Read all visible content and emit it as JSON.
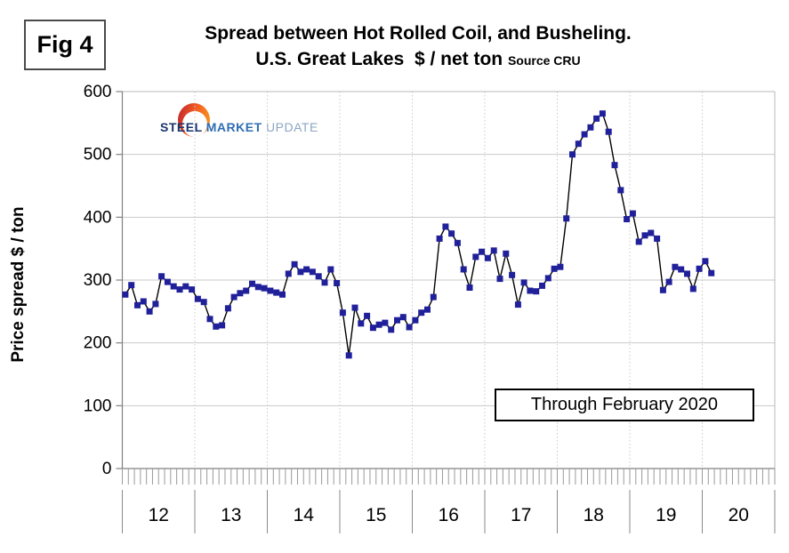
{
  "figure": {
    "label": "Fig 4"
  },
  "title": {
    "line1": "Spread between Hot Rolled Coil, and Busheling.",
    "line2": "U.S. Great Lakes  $ / net ton ",
    "source": "Source CRU"
  },
  "y_axis": {
    "title": "Price spread $ / ton",
    "ticks": [
      600,
      500,
      400,
      300,
      200,
      100,
      0
    ],
    "min": 0,
    "max": 600
  },
  "x_axis": {
    "year_labels": [
      "12",
      "13",
      "14",
      "15",
      "16",
      "17",
      "18",
      "19",
      "20"
    ],
    "months_per_year": 12
  },
  "annotation": {
    "text": "Through February 2020"
  },
  "logo": {
    "part1": "STEEL",
    "part2": " MARKET",
    "part3": " UPDATE"
  },
  "colors": {
    "series_marker": "#20209a",
    "series_line": "#000000",
    "grid": "#c9c9c9",
    "axis": "#808080",
    "border": "#b8b8b8",
    "logo_orange": "#f15a24",
    "logo_blue_dark": "#17356e",
    "logo_blue_mid": "#2e6db4",
    "logo_blue_light": "#8aa5c4"
  },
  "chart_data": {
    "type": "line",
    "title": "Spread between Hot Rolled Coil, and Busheling. U.S. Great Lakes $ / net ton",
    "source": "CRU",
    "ylabel": "Price spread $ / ton",
    "ylim": [
      0,
      600
    ],
    "y_gridline_step": 100,
    "x_start": "2012-01",
    "x_end": "2020-02",
    "x_unit": "month",
    "legend": "none",
    "marker": "square",
    "values": [
      277,
      292,
      260,
      266,
      250,
      262,
      306,
      297,
      290,
      285,
      290,
      285,
      270,
      265,
      238,
      226,
      228,
      255,
      273,
      279,
      283,
      294,
      289,
      287,
      283,
      280,
      277,
      310,
      325,
      313,
      317,
      313,
      306,
      296,
      317,
      295,
      248,
      180,
      256,
      231,
      243,
      224,
      229,
      232,
      221,
      236,
      241,
      225,
      236,
      248,
      253,
      273,
      366,
      385,
      374,
      359,
      317,
      288,
      337,
      345,
      335,
      347,
      302,
      342,
      308,
      261,
      296,
      283,
      282,
      291,
      303,
      318,
      321,
      398,
      500,
      517,
      532,
      543,
      557,
      565,
      536,
      483,
      443,
      397,
      406,
      361,
      371,
      375,
      366,
      284,
      297,
      321,
      317,
      310,
      286,
      318,
      330,
      311
    ]
  }
}
